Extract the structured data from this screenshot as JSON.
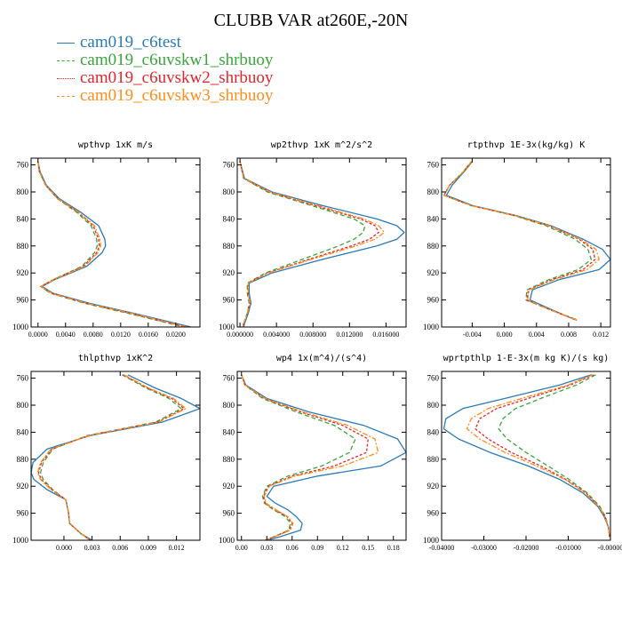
{
  "figure": {
    "title": "CLUBB VAR at260E,-20N"
  },
  "colors": {
    "cam019_c6test": "#2a7ab9",
    "cam019_c6uvskw1_shrbuoy": "#3aa53a",
    "cam019_c6uvskw2_shrbuoy": "#e0262b",
    "cam019_c6uvskw3_shrbuoy": "#ff8c1a"
  },
  "legend": [
    {
      "label": "cam019_c6test",
      "color": "#2a7ab9",
      "dash": "none"
    },
    {
      "label": "cam019_c6uvskw1_shrbuoy",
      "color": "#3aa53a",
      "dash": "5,3"
    },
    {
      "label": "cam019_c6uvskw2_shrbuoy",
      "color": "#e0262b",
      "dash": "3,2"
    },
    {
      "label": "cam019_c6uvskw3_shrbuoy",
      "color": "#ff8c1a",
      "dash": "6,2,2,2"
    }
  ],
  "chart_data": [
    {
      "type": "line",
      "title": "wpthvp  1xK m/s",
      "ylim": [
        1000,
        750
      ],
      "yticks": [
        760,
        800,
        840,
        880,
        920,
        960,
        1000
      ],
      "xlim": [
        -0.001,
        0.0235
      ],
      "xticks": [
        0.0,
        0.004,
        0.008,
        0.012,
        0.016,
        0.02
      ],
      "xticklabels": [
        "0.0000",
        "0.0040",
        "0.0080",
        "0.0120",
        "0.0160",
        "0.0200"
      ],
      "y": [
        755,
        770,
        790,
        810,
        830,
        850,
        870,
        880,
        890,
        910,
        930,
        940,
        950,
        965,
        980,
        1000
      ],
      "series": [
        {
          "name": "cam019_c6test",
          "values": [
            0.0,
            0.0003,
            0.0012,
            0.0031,
            0.0062,
            0.0088,
            0.0097,
            0.0098,
            0.0093,
            0.0071,
            0.0024,
            0.0006,
            0.0022,
            0.0075,
            0.014,
            0.0222
          ]
        },
        {
          "name": "cam019_c6uvskw1_shrbuoy",
          "values": [
            0.0,
            0.0002,
            0.0011,
            0.0028,
            0.0056,
            0.0077,
            0.0085,
            0.0086,
            0.0082,
            0.0064,
            0.0022,
            0.0004,
            0.0018,
            0.0068,
            0.0132,
            0.0212
          ]
        },
        {
          "name": "cam019_c6uvskw2_shrbuoy",
          "values": [
            0.0,
            0.0002,
            0.0011,
            0.0029,
            0.0058,
            0.008,
            0.0088,
            0.0089,
            0.0085,
            0.0066,
            0.0022,
            0.0004,
            0.0019,
            0.007,
            0.0135,
            0.0215
          ]
        },
        {
          "name": "cam019_c6uvskw3_shrbuoy",
          "values": [
            0.0,
            0.0002,
            0.0011,
            0.0029,
            0.0059,
            0.0082,
            0.009,
            0.0091,
            0.0087,
            0.0068,
            0.0023,
            0.0005,
            0.002,
            0.0071,
            0.0137,
            0.0217
          ]
        }
      ]
    },
    {
      "type": "line",
      "title": "wp2thvp  1xK m^2/s^2",
      "ylim": [
        1000,
        750
      ],
      "yticks": [
        760,
        800,
        840,
        880,
        920,
        960,
        1000
      ],
      "xlim": [
        -0.0003,
        0.0182
      ],
      "xticks": [
        0.0,
        0.004,
        0.008,
        0.012,
        0.016
      ],
      "xticklabels": [
        "0.000000",
        "0.004000",
        "0.008000",
        "0.012000",
        "0.016000"
      ],
      "y": [
        755,
        780,
        800,
        820,
        840,
        850,
        860,
        870,
        880,
        900,
        920,
        935,
        950,
        965,
        980,
        995,
        1000
      ],
      "series": [
        {
          "name": "cam019_c6test",
          "values": [
            0.0,
            0.0005,
            0.0035,
            0.009,
            0.015,
            0.0172,
            0.018,
            0.0172,
            0.015,
            0.009,
            0.0035,
            0.001,
            0.001,
            0.0012,
            0.0009,
            0.0005,
            0.0004
          ]
        },
        {
          "name": "cam019_c6uvskw1_shrbuoy",
          "values": [
            0.0,
            0.0004,
            0.003,
            0.0078,
            0.0125,
            0.0137,
            0.0135,
            0.0125,
            0.0108,
            0.0068,
            0.0028,
            0.0008,
            0.0008,
            0.001,
            0.0008,
            0.0004,
            0.0003
          ]
        },
        {
          "name": "cam019_c6uvskw2_shrbuoy",
          "values": [
            0.0,
            0.0004,
            0.0032,
            0.0082,
            0.0132,
            0.0148,
            0.0152,
            0.0142,
            0.0122,
            0.0075,
            0.003,
            0.0009,
            0.0009,
            0.0011,
            0.0008,
            0.0004,
            0.0003
          ]
        },
        {
          "name": "cam019_c6uvskw3_shrbuoy",
          "values": [
            0.0,
            0.0004,
            0.0033,
            0.0085,
            0.0136,
            0.0152,
            0.0158,
            0.0148,
            0.0127,
            0.0078,
            0.0031,
            0.0009,
            0.0009,
            0.0011,
            0.0008,
            0.0004,
            0.0003
          ]
        }
      ]
    },
    {
      "type": "line",
      "title": "rtpthvp  1E-3x(kg/kg) K",
      "ylim": [
        1000,
        750
      ],
      "yticks": [
        760,
        800,
        840,
        880,
        920,
        960,
        1000
      ],
      "xlim": [
        -0.0078,
        0.0132
      ],
      "xticks": [
        -0.004,
        0.0,
        0.004,
        0.008,
        0.012
      ],
      "xticklabels": [
        "-0.004",
        "0.000",
        "0.004",
        "0.008",
        "0.012"
      ],
      "y": [
        755,
        770,
        790,
        805,
        820,
        835,
        850,
        870,
        885,
        900,
        915,
        930,
        945,
        960,
        975,
        990
      ],
      "series": [
        {
          "name": "cam019_c6test",
          "values": [
            -0.004,
            -0.005,
            -0.0065,
            -0.0072,
            -0.004,
            0.0015,
            0.0058,
            0.0098,
            0.0122,
            0.0132,
            0.0118,
            0.0068,
            0.0035,
            0.0032,
            0.006,
            0.009
          ]
        },
        {
          "name": "cam019_c6uvskw1_shrbuoy",
          "values": [
            -0.004,
            -0.005,
            -0.0068,
            -0.0075,
            -0.0042,
            0.0012,
            0.0052,
            0.0088,
            0.0104,
            0.0108,
            0.0092,
            0.0055,
            0.0028,
            0.0027,
            0.0058,
            0.0092
          ]
        },
        {
          "name": "cam019_c6uvskw2_shrbuoy",
          "values": [
            -0.0041,
            -0.0051,
            -0.0068,
            -0.0075,
            -0.0042,
            0.0013,
            0.0055,
            0.0093,
            0.011,
            0.0113,
            0.0098,
            0.0059,
            0.003,
            0.0028,
            0.0058,
            0.009
          ]
        },
        {
          "name": "cam019_c6uvskw3_shrbuoy",
          "values": [
            -0.0041,
            -0.0051,
            -0.0068,
            -0.0075,
            -0.0042,
            0.0013,
            0.0056,
            0.0095,
            0.0114,
            0.0118,
            0.0103,
            0.0062,
            0.0031,
            0.0029,
            0.0058,
            0.0091
          ]
        }
      ]
    },
    {
      "type": "line",
      "title": "thlpthvp  1xK^2",
      "ylim": [
        1000,
        750
      ],
      "yticks": [
        760,
        800,
        840,
        880,
        920,
        960,
        1000
      ],
      "xlim": [
        -0.0035,
        0.0145
      ],
      "xticks": [
        0.0,
        0.003,
        0.006,
        0.009,
        0.012
      ],
      "xticklabels": [
        "0.000",
        "0.003",
        "0.006",
        "0.009",
        "0.012"
      ],
      "y": [
        755,
        775,
        790,
        805,
        825,
        845,
        865,
        885,
        900,
        910,
        925,
        940,
        960,
        975,
        990,
        1000
      ],
      "series": [
        {
          "name": "cam019_c6test",
          "values": [
            0.0068,
            0.0098,
            0.0125,
            0.0145,
            0.0105,
            0.0028,
            -0.0018,
            -0.0033,
            -0.0035,
            -0.0032,
            -0.0018,
            0.0002,
            0.0005,
            0.0006,
            0.0018,
            0.003
          ]
        },
        {
          "name": "cam019_c6uvskw1_shrbuoy",
          "values": [
            0.0062,
            0.0088,
            0.0112,
            0.0125,
            0.0098,
            0.0025,
            -0.0012,
            -0.0022,
            -0.0025,
            -0.0022,
            -0.0012,
            0.0002,
            0.0005,
            0.0006,
            0.0018,
            0.0028
          ]
        },
        {
          "name": "cam019_c6uvskw2_shrbuoy",
          "values": [
            0.0063,
            0.009,
            0.0115,
            0.0128,
            0.01,
            0.0026,
            -0.0013,
            -0.0024,
            -0.0027,
            -0.0024,
            -0.0013,
            0.0002,
            0.0005,
            0.0006,
            0.0018,
            0.0028
          ]
        },
        {
          "name": "cam019_c6uvskw3_shrbuoy",
          "values": [
            0.0064,
            0.0091,
            0.0117,
            0.013,
            0.0101,
            0.0027,
            -0.0014,
            -0.0025,
            -0.0028,
            -0.0025,
            -0.0014,
            0.0002,
            0.0005,
            0.0006,
            0.0018,
            0.0028
          ]
        }
      ]
    },
    {
      "type": "line",
      "title": "wp4  1x(m^4)/(s^4)",
      "ylim": [
        1000,
        750
      ],
      "yticks": [
        760,
        800,
        840,
        880,
        920,
        960,
        1000
      ],
      "xlim": [
        -0.005,
        0.195
      ],
      "xticks": [
        0.0,
        0.03,
        0.06,
        0.09,
        0.12,
        0.15,
        0.18
      ],
      "xticklabels": [
        "0.00",
        "0.03",
        "0.06",
        "0.09",
        "0.12",
        "0.15",
        "0.18"
      ],
      "y": [
        755,
        770,
        790,
        810,
        830,
        850,
        870,
        890,
        905,
        920,
        935,
        945,
        955,
        965,
        975,
        985,
        995,
        1000
      ],
      "series": [
        {
          "name": "cam019_c6test",
          "values": [
            0.0,
            0.005,
            0.03,
            0.08,
            0.145,
            0.185,
            0.195,
            0.165,
            0.09,
            0.038,
            0.03,
            0.04,
            0.055,
            0.065,
            0.072,
            0.07,
            0.045,
            0.03
          ]
        },
        {
          "name": "cam019_c6uvskw1_shrbuoy",
          "values": [
            0.0,
            0.004,
            0.025,
            0.065,
            0.11,
            0.135,
            0.128,
            0.095,
            0.055,
            0.03,
            0.025,
            0.027,
            0.038,
            0.052,
            0.058,
            0.056,
            0.038,
            0.028
          ]
        },
        {
          "name": "cam019_c6uvskw2_shrbuoy",
          "values": [
            0.0,
            0.004,
            0.027,
            0.07,
            0.12,
            0.15,
            0.148,
            0.11,
            0.06,
            0.032,
            0.026,
            0.028,
            0.04,
            0.054,
            0.06,
            0.057,
            0.039,
            0.028
          ]
        },
        {
          "name": "cam019_c6uvskw3_shrbuoy",
          "values": [
            0.0,
            0.004,
            0.028,
            0.073,
            0.126,
            0.158,
            0.162,
            0.12,
            0.063,
            0.033,
            0.027,
            0.029,
            0.041,
            0.055,
            0.061,
            0.058,
            0.039,
            0.028
          ]
        }
      ]
    },
    {
      "type": "line",
      "title": "wprtpthlp  1-E-3x(m kg K)/(s kg)",
      "ylim": [
        1000,
        750
      ],
      "yticks": [
        760,
        800,
        840,
        880,
        920,
        960,
        1000
      ],
      "xlim": [
        -0.04,
        0.0
      ],
      "xticks": [
        -0.04,
        -0.03,
        -0.02,
        -0.01,
        0.0
      ],
      "xticklabels": [
        "-0.04000",
        "-0.03000",
        "-0.02000",
        "-0.01000",
        "-0.00000"
      ],
      "y": [
        755,
        770,
        790,
        805,
        820,
        835,
        850,
        870,
        890,
        910,
        930,
        950,
        965,
        980,
        995
      ],
      "series": [
        {
          "name": "cam019_c6test",
          "values": [
            -0.0045,
            -0.012,
            -0.025,
            -0.035,
            -0.039,
            -0.0395,
            -0.036,
            -0.0285,
            -0.0195,
            -0.012,
            -0.0065,
            -0.003,
            -0.0015,
            -0.0005,
            -0.0002
          ]
        },
        {
          "name": "cam019_c6uvskw1_shrbuoy",
          "values": [
            -0.0035,
            -0.008,
            -0.0165,
            -0.0225,
            -0.0255,
            -0.0265,
            -0.0245,
            -0.02,
            -0.0148,
            -0.0098,
            -0.0055,
            -0.0025,
            -0.0012,
            -0.0005,
            -0.0002
          ]
        },
        {
          "name": "cam019_c6uvskw2_shrbuoy",
          "values": [
            -0.004,
            -0.0095,
            -0.0195,
            -0.027,
            -0.031,
            -0.032,
            -0.029,
            -0.0235,
            -0.0165,
            -0.0105,
            -0.0058,
            -0.0027,
            -0.0013,
            -0.0005,
            -0.0002
          ]
        },
        {
          "name": "cam019_c6uvskw3_shrbuoy",
          "values": [
            -0.0042,
            -0.01,
            -0.021,
            -0.029,
            -0.033,
            -0.034,
            -0.031,
            -0.025,
            -0.0175,
            -0.0108,
            -0.006,
            -0.0028,
            -0.0013,
            -0.0005,
            -0.0002
          ]
        }
      ]
    }
  ]
}
